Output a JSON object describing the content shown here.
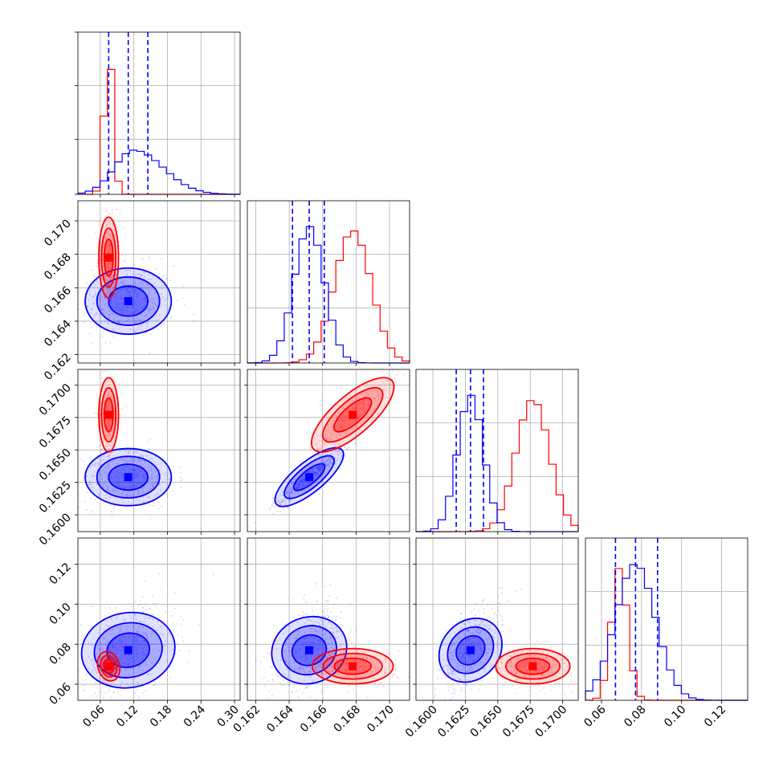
{
  "chart_data": {
    "type": "corner",
    "colors": {
      "series_a": "#ff0000",
      "series_b": "#0000ff"
    },
    "grid": true,
    "dimensions": [
      {
        "index": 0,
        "range": [
          0.02,
          0.31
        ],
        "ticks": [
          0.06,
          0.12,
          0.18,
          0.24,
          0.3
        ],
        "tick_labels": [
          "0.06",
          "0.12",
          "0.18",
          "0.24",
          "0.30"
        ],
        "red": {
          "mean": 0.075,
          "sd": 0.008
        },
        "blue": {
          "mean": 0.12,
          "sd": 0.035,
          "skew": 0.5
        },
        "quantile_lines": [
          0.075,
          0.11,
          0.145
        ]
      },
      {
        "index": 1,
        "range": [
          0.1615,
          0.1712
        ],
        "ticks": [
          0.162,
          0.164,
          0.166,
          0.168,
          0.17
        ],
        "tick_labels": [
          "0.162",
          "0.164",
          "0.166",
          "0.168",
          "0.170"
        ],
        "red": {
          "mean": 0.1678,
          "sd": 0.0011
        },
        "blue": {
          "mean": 0.1652,
          "sd": 0.0009
        },
        "quantile_lines": [
          0.1642,
          0.1652,
          0.1661
        ]
      },
      {
        "index": 2,
        "range": [
          0.1587,
          0.1712
        ],
        "ticks": [
          0.16,
          0.1625,
          0.165,
          0.1675,
          0.17
        ],
        "tick_labels": [
          "0.1600",
          "0.1625",
          "0.1650",
          "0.1675",
          "0.1700"
        ],
        "red": {
          "mean": 0.1677,
          "sd": 0.0013
        },
        "blue": {
          "mean": 0.1629,
          "sd": 0.001
        },
        "quantile_lines": [
          0.1618,
          0.1629,
          0.1639
        ]
      },
      {
        "index": 3,
        "range": [
          0.052,
          0.133
        ],
        "ticks": [
          0.06,
          0.08,
          0.1,
          0.12
        ],
        "tick_labels": [
          "0.06",
          "0.08",
          "0.10",
          "0.12"
        ],
        "red": {
          "mean": 0.069,
          "sd": 0.004
        },
        "blue": {
          "mean": 0.077,
          "sd": 0.01
        },
        "quantile_lines": [
          0.067,
          0.077,
          0.088
        ]
      }
    ],
    "red_centers_2d": [
      {
        "x": 0,
        "y": 1,
        "cx": 0.075,
        "cy": 0.1678,
        "rho": 0.0
      },
      {
        "x": 0,
        "y": 2,
        "cx": 0.075,
        "cy": 0.1677,
        "rho": 0.0
      },
      {
        "x": 1,
        "y": 2,
        "cx": 0.1678,
        "cy": 0.1677,
        "rho": 0.95
      },
      {
        "x": 0,
        "y": 3,
        "cx": 0.075,
        "cy": 0.069,
        "rho": 0.3
      },
      {
        "x": 1,
        "y": 3,
        "cx": 0.1678,
        "cy": 0.069,
        "rho": 0.0
      },
      {
        "x": 2,
        "y": 3,
        "cx": 0.1677,
        "cy": 0.069,
        "rho": 0.0
      }
    ],
    "blue_centers_2d": [
      {
        "x": 0,
        "y": 1,
        "cx": 0.11,
        "cy": 0.1652,
        "rho": 0.0
      },
      {
        "x": 0,
        "y": 2,
        "cx": 0.11,
        "cy": 0.1629,
        "rho": 0.0
      },
      {
        "x": 1,
        "y": 2,
        "cx": 0.1652,
        "cy": 0.1629,
        "rho": 0.95
      },
      {
        "x": 0,
        "y": 3,
        "cx": 0.11,
        "cy": 0.077,
        "rho": 0.3
      },
      {
        "x": 1,
        "y": 3,
        "cx": 0.1652,
        "cy": 0.077,
        "rho": 0.5
      },
      {
        "x": 2,
        "y": 3,
        "cx": 0.1629,
        "cy": 0.077,
        "rho": 0.7
      }
    ]
  }
}
